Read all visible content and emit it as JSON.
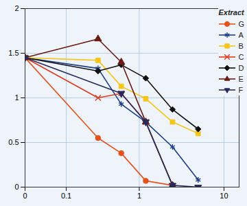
{
  "chart_data": {
    "type": "line",
    "legend_title": "Extract",
    "legend": "top-right",
    "log": "x",
    "grid": true,
    "x": [
      0,
      0.3,
      0.6,
      1.2,
      2.5,
      5
    ],
    "xlim": [
      0,
      15
    ],
    "xticks": [
      0,
      0.1,
      1,
      10
    ],
    "ylim": [
      0,
      2
    ],
    "yticks": [
      0,
      0.5,
      1,
      1.5,
      2
    ],
    "series": [
      {
        "name": "G",
        "color": "#e8501c",
        "marker": "circle",
        "values": [
          1.45,
          0.55,
          0.38,
          0.07,
          0.02,
          null
        ]
      },
      {
        "name": "A",
        "color": "#1c3c8c",
        "marker": "asterisk",
        "values": [
          1.45,
          1.33,
          0.93,
          0.73,
          0.45,
          0.08
        ]
      },
      {
        "name": "B",
        "color": "#f5c518",
        "marker": "square",
        "values": [
          1.45,
          1.42,
          1.13,
          0.99,
          0.73,
          0.6
        ]
      },
      {
        "name": "C",
        "color": "#e03a1e",
        "marker": "times",
        "values": [
          1.45,
          1.0,
          1.05,
          0.73,
          null,
          null
        ]
      },
      {
        "name": "D",
        "color": "#111111",
        "marker": "diamond",
        "values": [
          1.45,
          1.3,
          1.37,
          1.22,
          0.87,
          0.65
        ]
      },
      {
        "name": "E",
        "color": "#6b1a12",
        "marker": "triangle",
        "values": [
          1.45,
          1.66,
          1.4,
          0.73,
          0.02,
          null
        ]
      },
      {
        "name": "F",
        "color": "#2a2a5a",
        "marker": "triangle-down",
        "values": [
          1.45,
          null,
          1.05,
          0.73,
          0.02,
          0.0
        ]
      }
    ]
  }
}
